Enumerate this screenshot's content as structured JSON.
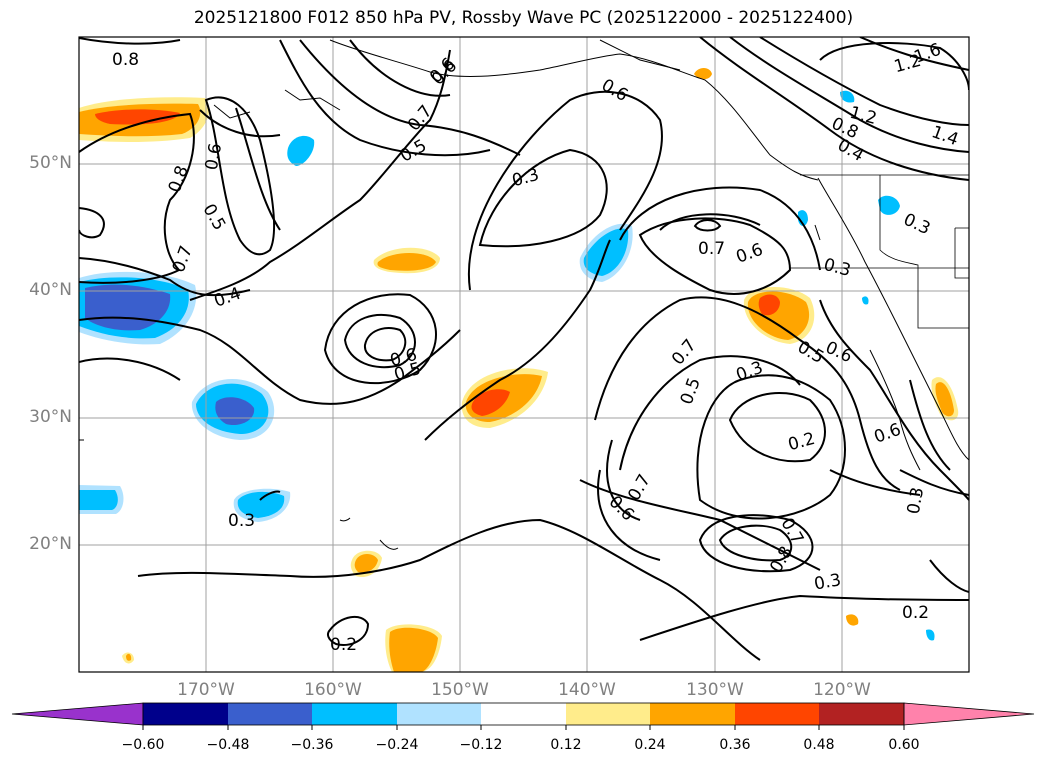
{
  "title": "2025121800 F012 850 hPa PV, Rossby Wave PC (2025122000 - 2025122400)",
  "map": {
    "extent_lon": [
      -180,
      -110
    ],
    "extent_lat": [
      10,
      60
    ],
    "grid": true,
    "gridline_color": "#a0a0a0",
    "lat_labels": [
      "50°N",
      "40°N",
      "30°N",
      "20°N"
    ],
    "lon_labels": [
      "170°W",
      "160°W",
      "150°W",
      "140°W",
      "130°W",
      "120°W"
    ],
    "contour_labels": [
      "0.8",
      "0.8",
      "0.6",
      "0.5",
      "0.7",
      "0.4",
      "0.6",
      "0.7",
      "0.5",
      "0.3",
      "0.6",
      "0.5",
      "0.7",
      "0.6",
      "0.3",
      "0.5",
      "0.6",
      "0.7",
      "0.5",
      "0.3",
      "0.2",
      "0.6",
      "0.7",
      "0.6",
      "0.8",
      "0.7",
      "0.3",
      "0.2",
      "0.3",
      "0.3",
      "0.2",
      "1.6",
      "1.2",
      "1.2",
      "1.4",
      "0.8",
      "0.4",
      "0.3",
      "0.6",
      "0.6"
    ]
  },
  "colorbar": {
    "ticks": [
      "−0.60",
      "−0.48",
      "−0.36",
      "−0.24",
      "−0.12",
      "0.12",
      "0.24",
      "0.36",
      "0.48",
      "0.60"
    ],
    "colors": [
      "#9932cc",
      "#00008b",
      "#3a5fcd",
      "#00bfff",
      "#b0e2ff",
      "#ffffff",
      "#ffec8b",
      "#ffa500",
      "#ff4500",
      "#b22222",
      "#ff82ab"
    ],
    "extend": "both"
  }
}
